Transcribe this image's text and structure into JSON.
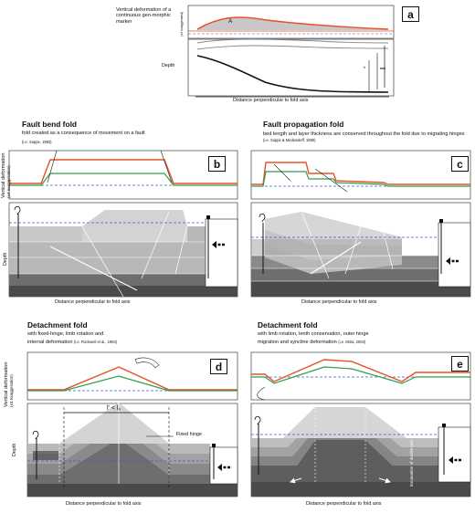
{
  "panel_a": {
    "letter": "a",
    "vertical_label": "Vertical deformation of a continuous geo-morphic marker",
    "axis_tiny": "(x4 exaggerated)",
    "area_label": "A",
    "depth_label": "Depth",
    "h_label": "h",
    "x_label": "Distance perpendicular to fold axis"
  },
  "panel_b": {
    "letter": "b",
    "title": "Fault bend fold",
    "subtitle": "fold created as a consequence of movement on a fault",
    "citation": "(i.e. Suppe, 1983)",
    "x_label": "Distance perpendicular to fold axis"
  },
  "panel_c": {
    "letter": "c",
    "title": "Fault propagation fold",
    "subtitle": "bed length and layer thickness are conserved throughout the fold due to migrating hinges",
    "citation": "(i.e. Suppe & Medwedeff, 1990)",
    "x_label": "Distance perpendicular to fold axis"
  },
  "panel_d": {
    "letter": "d",
    "title": "Detachment fold",
    "subtitle_1": "with fixed-hinge, limb rotation and",
    "subtitle_2": "internal deformation",
    "citation": "(i.e. Rockwell et al., 1984)",
    "length_label": "l' < l₀",
    "hinge_label": "Fixed hinge",
    "x_label": "Distance perpendicular to fold axis"
  },
  "panel_e": {
    "letter": "e",
    "title": "Detachment fold",
    "subtitle_1": "with limb rotation, lenth conservation, outer hinge",
    "subtitle_2": "migration and syncline deformation",
    "citation": "(i.e. Mitra, 2003)",
    "excavation_label": "Excavation of ductile unit",
    "x_label": "Distance perpendicular to fold axis"
  },
  "shared": {
    "vertical_deformation": "Vertical deformation",
    "exaggeration": "(x4 exaggeration)",
    "depth": "Depth"
  },
  "colors": {
    "orange": "#e8502a",
    "green": "#2e9e4a",
    "blue_dashed": "#3b5fc0",
    "dark_gray": "#4a4a4a"
  }
}
